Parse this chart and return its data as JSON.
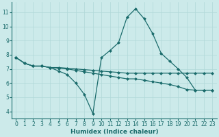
{
  "xlabel": "Humidex (Indice chaleur)",
  "bg_color": "#cceaea",
  "line_color": "#1a6b6b",
  "grid_color": "#b0d8d8",
  "xlim": [
    -0.5,
    23.5
  ],
  "ylim": [
    3.5,
    11.7
  ],
  "xticks": [
    0,
    1,
    2,
    3,
    4,
    5,
    6,
    7,
    8,
    9,
    10,
    11,
    12,
    13,
    14,
    15,
    16,
    17,
    18,
    19,
    20,
    21,
    22,
    23
  ],
  "yticks": [
    4,
    5,
    6,
    7,
    8,
    9,
    10,
    11
  ],
  "line1_x": [
    0,
    1,
    2,
    3,
    4,
    5,
    6,
    7,
    8,
    9,
    10,
    11,
    12,
    13,
    14,
    15,
    16,
    17,
    18,
    19,
    20,
    21,
    22,
    23
  ],
  "line1_y": [
    7.8,
    7.4,
    7.2,
    7.2,
    7.1,
    7.1,
    7.05,
    7.0,
    6.95,
    6.9,
    6.85,
    6.8,
    6.75,
    6.7,
    6.7,
    6.7,
    6.7,
    6.7,
    6.7,
    6.7,
    6.7,
    6.7,
    6.7,
    6.7
  ],
  "line2_x": [
    0,
    1,
    2,
    3,
    4,
    5,
    6,
    7,
    8,
    9,
    10,
    11,
    12,
    13,
    14,
    15,
    16,
    17,
    18,
    19,
    20,
    21,
    22,
    23
  ],
  "line2_y": [
    7.8,
    7.4,
    7.2,
    7.2,
    7.1,
    6.85,
    6.6,
    6.0,
    5.2,
    3.85,
    7.8,
    8.3,
    8.85,
    10.65,
    11.25,
    10.55,
    9.5,
    8.1,
    7.55,
    7.0,
    6.4,
    5.5,
    5.5,
    5.5
  ],
  "line3_x": [
    0,
    1,
    2,
    3,
    4,
    5,
    6,
    7,
    8,
    9,
    10,
    11,
    12,
    13,
    14,
    15,
    16,
    17,
    18,
    19,
    20,
    21,
    22,
    23
  ],
  "line3_y": [
    7.8,
    7.4,
    7.2,
    7.2,
    7.1,
    7.05,
    7.0,
    6.9,
    6.8,
    6.7,
    6.6,
    6.5,
    6.4,
    6.3,
    6.3,
    6.2,
    6.1,
    6.0,
    5.9,
    5.75,
    5.55,
    5.5,
    5.5,
    5.5
  ]
}
